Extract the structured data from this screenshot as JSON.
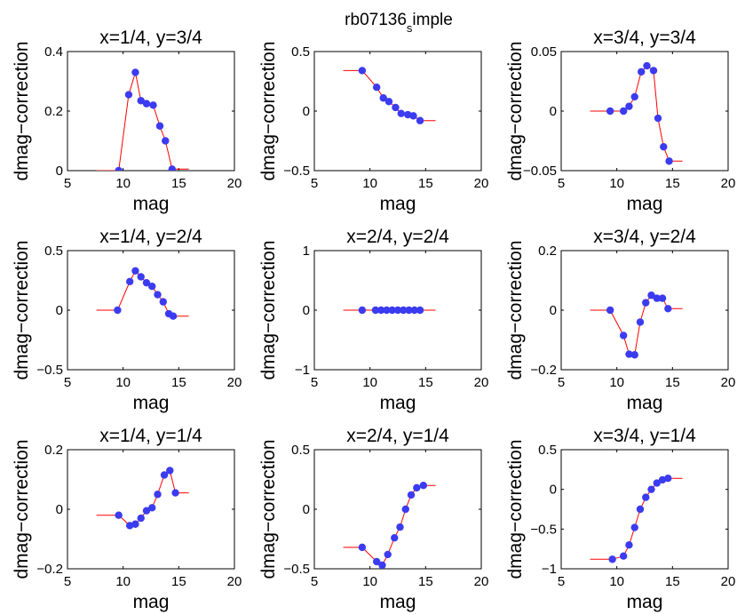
{
  "figure": {
    "suptitle_main": "rb07136",
    "suptitle_sub": "s",
    "suptitle_rest": "imple"
  },
  "chart_data": [
    {
      "type": "line",
      "title": "x=1/4, y=3/4",
      "xlabel": "mag",
      "ylabel": "dmag−correction",
      "xlim": [
        5,
        20
      ],
      "ylim": [
        0,
        0.4
      ],
      "xticks": [
        5,
        10,
        15,
        20
      ],
      "xtick_labels": [
        "5",
        "10",
        "15",
        "20"
      ],
      "yticks": [
        0,
        0.2,
        0.4
      ],
      "ytick_labels": [
        "0",
        "0.2",
        "0.4"
      ],
      "line_x": [
        7.6,
        9.6,
        10.5,
        11.1,
        11.6,
        12.1,
        12.7,
        13.3,
        13.8,
        14.4,
        15.9
      ],
      "line_y": [
        0,
        0,
        0.255,
        0.33,
        0.235,
        0.225,
        0.22,
        0.15,
        0.1,
        0.005,
        0.005
      ],
      "points_x": [
        9.6,
        10.5,
        11.1,
        11.6,
        12.1,
        12.7,
        13.3,
        13.8,
        14.4
      ],
      "points_y": [
        0,
        0.255,
        0.33,
        0.235,
        0.225,
        0.22,
        0.15,
        0.1,
        0.005
      ]
    },
    {
      "type": "line",
      "title": "",
      "xlabel": "mag",
      "ylabel": "dmag−correction",
      "xlim": [
        5,
        20
      ],
      "ylim": [
        -0.5,
        0.5
      ],
      "xticks": [
        5,
        10,
        15,
        20
      ],
      "xtick_labels": [
        "5",
        "10",
        "15",
        "20"
      ],
      "yticks": [
        -0.5,
        0,
        0.5
      ],
      "ytick_labels": [
        "−0.5",
        "0",
        "0.5"
      ],
      "line_x": [
        7.6,
        9.3,
        10.6,
        11.2,
        11.7,
        12.3,
        12.8,
        13.4,
        13.9,
        14.5,
        15.9
      ],
      "line_y": [
        0.34,
        0.34,
        0.2,
        0.11,
        0.08,
        0.03,
        -0.02,
        -0.03,
        -0.04,
        -0.08,
        -0.08
      ],
      "points_x": [
        9.3,
        10.6,
        11.2,
        11.7,
        12.3,
        12.8,
        13.4,
        13.9,
        14.5
      ],
      "points_y": [
        0.34,
        0.2,
        0.11,
        0.08,
        0.03,
        -0.02,
        -0.03,
        -0.04,
        -0.08
      ]
    },
    {
      "type": "line",
      "title": "x=3/4, y=3/4",
      "xlabel": "mag",
      "ylabel": "dmag−correction",
      "xlim": [
        5,
        20
      ],
      "ylim": [
        -0.05,
        0.05
      ],
      "xticks": [
        5,
        10,
        15,
        20
      ],
      "xtick_labels": [
        "5",
        "10",
        "15",
        "20"
      ],
      "yticks": [
        -0.05,
        0,
        0.05
      ],
      "ytick_labels": [
        "−0.05",
        "0",
        "0.05"
      ],
      "line_x": [
        7.6,
        9.4,
        10.6,
        11.1,
        11.6,
        12.2,
        12.7,
        13.3,
        13.7,
        14.2,
        14.7,
        15.9
      ],
      "line_y": [
        0,
        0,
        0,
        0.004,
        0.012,
        0.033,
        0.038,
        0.034,
        -0.006,
        -0.03,
        -0.042,
        -0.042
      ],
      "points_x": [
        9.4,
        10.6,
        11.1,
        11.6,
        12.2,
        12.7,
        13.3,
        13.7,
        14.2,
        14.7
      ],
      "points_y": [
        0,
        0,
        0.004,
        0.012,
        0.033,
        0.038,
        0.034,
        -0.006,
        -0.03,
        -0.042
      ]
    },
    {
      "type": "line",
      "title": "x=1/4, y=2/4",
      "xlabel": "mag",
      "ylabel": "dmag−correction",
      "xlim": [
        5,
        20
      ],
      "ylim": [
        -0.5,
        0.5
      ],
      "xticks": [
        5,
        10,
        15,
        20
      ],
      "xtick_labels": [
        "5",
        "10",
        "15",
        "20"
      ],
      "yticks": [
        -0.5,
        0,
        0.5
      ],
      "ytick_labels": [
        "−0.5",
        "0",
        "0.5"
      ],
      "line_x": [
        7.6,
        9.5,
        10.6,
        11.1,
        11.6,
        12.1,
        12.6,
        13.1,
        13.6,
        14.1,
        14.5,
        15.9
      ],
      "line_y": [
        0,
        0,
        0.24,
        0.33,
        0.28,
        0.23,
        0.2,
        0.13,
        0.07,
        -0.03,
        -0.05,
        -0.05
      ],
      "points_x": [
        9.5,
        10.6,
        11.1,
        11.6,
        12.1,
        12.6,
        13.1,
        13.6,
        14.1,
        14.5
      ],
      "points_y": [
        0,
        0.24,
        0.33,
        0.28,
        0.23,
        0.2,
        0.13,
        0.07,
        -0.03,
        -0.05
      ]
    },
    {
      "type": "line",
      "title": "x=2/4, y=2/4",
      "xlabel": "mag",
      "ylabel": "dmag−correction",
      "xlim": [
        5,
        20
      ],
      "ylim": [
        -1,
        1
      ],
      "xticks": [
        5,
        10,
        15,
        20
      ],
      "xtick_labels": [
        "5",
        "10",
        "15",
        "20"
      ],
      "yticks": [
        -1,
        0,
        1
      ],
      "ytick_labels": [
        "−1",
        "0",
        "1"
      ],
      "line_x": [
        7.6,
        9.3,
        10.5,
        11.0,
        11.5,
        12.0,
        12.5,
        13.0,
        13.5,
        14.0,
        14.5,
        15.9
      ],
      "line_y": [
        0,
        0,
        0,
        0,
        0,
        0,
        0,
        0,
        0,
        0,
        0,
        0
      ],
      "points_x": [
        9.3,
        10.5,
        11.0,
        11.5,
        12.0,
        12.5,
        13.0,
        13.5,
        14.0,
        14.5
      ],
      "points_y": [
        0,
        0,
        0,
        0,
        0,
        0,
        0,
        0,
        0,
        0
      ]
    },
    {
      "type": "line",
      "title": "x=3/4, y=2/4",
      "xlabel": "mag",
      "ylabel": "dmag−correction",
      "xlim": [
        5,
        20
      ],
      "ylim": [
        -0.2,
        0.2
      ],
      "xticks": [
        5,
        10,
        15,
        20
      ],
      "xtick_labels": [
        "5",
        "10",
        "15",
        "20"
      ],
      "yticks": [
        -0.2,
        0,
        0.2
      ],
      "ytick_labels": [
        "−0.2",
        "0",
        "0.2"
      ],
      "line_x": [
        7.6,
        9.4,
        10.6,
        11.1,
        11.6,
        12.1,
        12.6,
        13.1,
        13.6,
        14.1,
        14.6,
        15.9
      ],
      "line_y": [
        0,
        0,
        -0.085,
        -0.148,
        -0.15,
        -0.04,
        0.025,
        0.05,
        0.04,
        0.04,
        0.005,
        0.005
      ],
      "points_x": [
        9.4,
        10.6,
        11.1,
        11.6,
        12.1,
        12.6,
        13.1,
        13.6,
        14.1,
        14.6
      ],
      "points_y": [
        0,
        -0.085,
        -0.148,
        -0.15,
        -0.04,
        0.025,
        0.05,
        0.04,
        0.04,
        0.005
      ]
    },
    {
      "type": "line",
      "title": "x=1/4, y=1/4",
      "xlabel": "mag",
      "ylabel": "dmag−correction",
      "xlim": [
        5,
        20
      ],
      "ylim": [
        -0.2,
        0.2
      ],
      "xticks": [
        5,
        10,
        15,
        20
      ],
      "xtick_labels": [
        "5",
        "10",
        "15",
        "20"
      ],
      "yticks": [
        -0.2,
        0,
        0.2
      ],
      "ytick_labels": [
        "−0.2",
        "0",
        "0.2"
      ],
      "line_x": [
        7.6,
        9.6,
        10.6,
        11.1,
        11.6,
        12.1,
        12.6,
        13.1,
        13.7,
        14.2,
        14.7,
        15.9
      ],
      "line_y": [
        -0.02,
        -0.02,
        -0.055,
        -0.05,
        -0.03,
        -0.005,
        0.005,
        0.05,
        0.115,
        0.13,
        0.055,
        0.055
      ],
      "points_x": [
        9.6,
        10.6,
        11.1,
        11.6,
        12.1,
        12.6,
        13.1,
        13.7,
        14.2,
        14.7
      ],
      "points_y": [
        -0.02,
        -0.055,
        -0.05,
        -0.03,
        -0.005,
        0.005,
        0.05,
        0.115,
        0.13,
        0.055
      ]
    },
    {
      "type": "line",
      "title": "x=2/4, y=1/4",
      "xlabel": "mag",
      "ylabel": "dmag−correction",
      "xlim": [
        5,
        20
      ],
      "ylim": [
        -0.5,
        0.5
      ],
      "xticks": [
        5,
        10,
        15,
        20
      ],
      "xtick_labels": [
        "5",
        "10",
        "15",
        "20"
      ],
      "yticks": [
        -0.5,
        0,
        0.5
      ],
      "ytick_labels": [
        "−0.5",
        "0",
        "0.5"
      ],
      "line_x": [
        7.6,
        9.3,
        10.6,
        11.1,
        11.6,
        12.2,
        12.7,
        13.2,
        13.7,
        14.2,
        14.8,
        15.9
      ],
      "line_y": [
        -0.32,
        -0.32,
        -0.44,
        -0.47,
        -0.38,
        -0.24,
        -0.15,
        0.0,
        0.12,
        0.18,
        0.2,
        0.2
      ],
      "points_x": [
        9.3,
        10.6,
        11.1,
        11.6,
        12.2,
        12.7,
        13.2,
        13.7,
        14.2,
        14.8
      ],
      "points_y": [
        -0.32,
        -0.44,
        -0.47,
        -0.38,
        -0.24,
        -0.15,
        0.0,
        0.12,
        0.18,
        0.2
      ]
    },
    {
      "type": "line",
      "title": "x=3/4, y=1/4",
      "xlabel": "mag",
      "ylabel": "dmag−correction",
      "xlim": [
        5,
        20
      ],
      "ylim": [
        -1,
        0.5
      ],
      "xticks": [
        5,
        10,
        15,
        20
      ],
      "xtick_labels": [
        "5",
        "10",
        "15",
        "20"
      ],
      "yticks": [
        -1,
        -0.5,
        0,
        0.5
      ],
      "ytick_labels": [
        "−1",
        "−0.5",
        "0",
        "0.5"
      ],
      "line_x": [
        7.6,
        9.6,
        10.6,
        11.1,
        11.6,
        12.1,
        12.6,
        13.1,
        13.6,
        14.1,
        14.6,
        15.9
      ],
      "line_y": [
        -0.88,
        -0.88,
        -0.84,
        -0.7,
        -0.48,
        -0.25,
        -0.1,
        0.0,
        0.08,
        0.12,
        0.14,
        0.14
      ],
      "points_x": [
        9.6,
        10.6,
        11.1,
        11.6,
        12.1,
        12.6,
        13.1,
        13.6,
        14.1,
        14.6
      ],
      "points_y": [
        -0.88,
        -0.84,
        -0.7,
        -0.48,
        -0.25,
        -0.1,
        0.0,
        0.08,
        0.12,
        0.14
      ]
    }
  ]
}
